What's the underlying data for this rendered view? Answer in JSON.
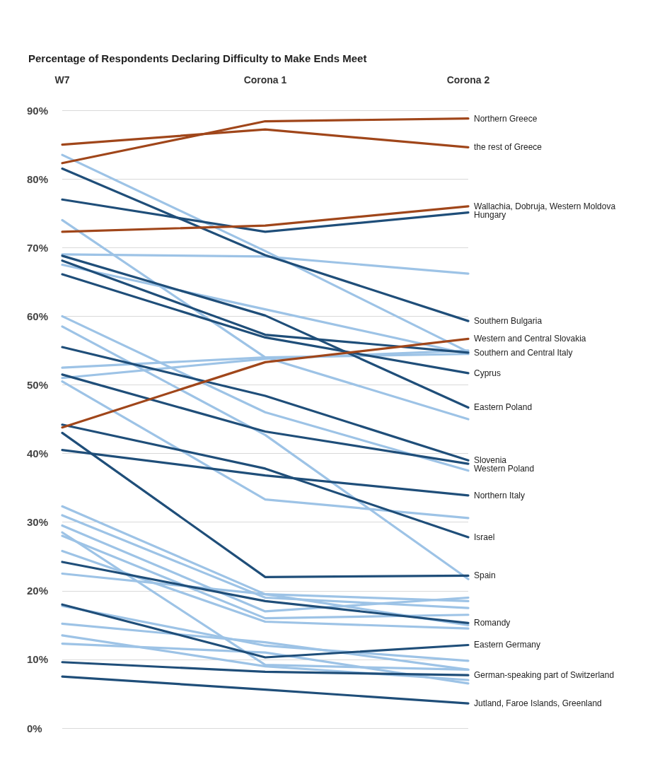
{
  "chart_data": {
    "type": "line",
    "title": "Percentage of Respondents Declaring Difficulty to Make Ends Meet",
    "categories": [
      "W7",
      "Corona 1",
      "Corona 2"
    ],
    "ylim": [
      0,
      90
    ],
    "yticks": [
      {
        "value": 0,
        "label": "0%"
      },
      {
        "value": 10,
        "label": "10%"
      },
      {
        "value": 20,
        "label": "20%"
      },
      {
        "value": 30,
        "label": "30%"
      },
      {
        "value": 40,
        "label": "40%"
      },
      {
        "value": 50,
        "label": "50%"
      },
      {
        "value": 60,
        "label": "60%"
      },
      {
        "value": 70,
        "label": "70%"
      },
      {
        "value": 80,
        "label": "80%"
      },
      {
        "value": 90,
        "label": "90%"
      }
    ],
    "grid": "y",
    "legend": false,
    "marker": "none",
    "line_style": "solid",
    "series": [
      {
        "color": "#9dc3e6",
        "values": [
          83.5,
          69.5,
          54.8
        ]
      },
      {
        "color": "#9dc3e6",
        "values": [
          74.0,
          54.0,
          45.0
        ]
      },
      {
        "color": "#9dc3e6",
        "values": [
          69.0,
          68.7,
          66.2
        ]
      },
      {
        "color": "#9dc3e6",
        "values": [
          67.5,
          61.0,
          54.5
        ]
      },
      {
        "color": "#9dc3e6",
        "values": [
          60.0,
          46.0,
          37.5
        ]
      },
      {
        "color": "#9dc3e6",
        "values": [
          58.5,
          42.7,
          21.7
        ]
      },
      {
        "color": "#9dc3e6",
        "values": [
          52.5,
          54.0,
          54.5
        ]
      },
      {
        "color": "#9dc3e6",
        "values": [
          51.0,
          53.8,
          55.0
        ]
      },
      {
        "color": "#9dc3e6",
        "values": [
          50.5,
          33.3,
          30.6
        ]
      },
      {
        "color": "#9dc3e6",
        "values": [
          32.3,
          19.5,
          18.5
        ]
      },
      {
        "color": "#9dc3e6",
        "values": [
          31.0,
          19.0,
          17.5
        ]
      },
      {
        "color": "#9dc3e6",
        "values": [
          29.5,
          17.0,
          19.0
        ]
      },
      {
        "color": "#9dc3e6",
        "values": [
          28.5,
          9.2,
          8.5
        ]
      },
      {
        "color": "#9dc3e6",
        "values": [
          28.0,
          16.0,
          16.5
        ]
      },
      {
        "color": "#9dc3e6",
        "values": [
          25.8,
          15.5,
          14.5
        ]
      },
      {
        "color": "#9dc3e6",
        "values": [
          22.5,
          19.5,
          15.0
        ]
      },
      {
        "color": "#9dc3e6",
        "values": [
          17.8,
          12.0,
          9.8
        ]
      },
      {
        "color": "#9dc3e6",
        "values": [
          15.2,
          12.5,
          8.5
        ]
      },
      {
        "color": "#9dc3e6",
        "values": [
          13.5,
          9.0,
          7.0
        ]
      },
      {
        "color": "#9dc3e6",
        "values": [
          12.3,
          11.0,
          6.5
        ]
      },
      {
        "name": "Hungary",
        "color": "#1f4e79",
        "values": [
          77.0,
          72.3,
          75.1
        ]
      },
      {
        "name": "Southern Bulgaria",
        "color": "#1f4e79",
        "values": [
          81.5,
          68.9,
          59.3
        ]
      },
      {
        "name": "Southern and Central Italy",
        "color": "#1f4e79",
        "values": [
          68.1,
          57.3,
          54.7
        ]
      },
      {
        "name": "Cyprus",
        "color": "#1f4e79",
        "values": [
          66.1,
          56.9,
          51.7
        ]
      },
      {
        "name": "Eastern Poland",
        "color": "#1f4e79",
        "values": [
          68.8,
          60.1,
          46.7
        ]
      },
      {
        "name": "Slovenia",
        "color": "#1f4e79",
        "values": [
          55.5,
          48.4,
          39.0
        ]
      },
      {
        "name": "Western Poland",
        "color": "#1f4e79",
        "values": [
          51.5,
          43.2,
          38.5
        ]
      },
      {
        "name": "Northern Italy",
        "color": "#1f4e79",
        "values": [
          40.5,
          36.8,
          33.9
        ]
      },
      {
        "name": "Israel",
        "color": "#1f4e79",
        "values": [
          44.2,
          37.8,
          27.8
        ]
      },
      {
        "name": "Spain",
        "color": "#1f4e79",
        "values": [
          43.0,
          22.0,
          22.2
        ]
      },
      {
        "name": "Romandy",
        "color": "#1f4e79",
        "values": [
          24.2,
          18.5,
          15.3
        ]
      },
      {
        "name": "Eastern Germany",
        "color": "#1f4e79",
        "values": [
          18.0,
          10.3,
          12.1
        ]
      },
      {
        "name": "German-speaking part of Switzerland",
        "color": "#1f4e79",
        "values": [
          9.6,
          8.2,
          7.7
        ]
      },
      {
        "name": "Jutland, Faroe Islands, Greenland",
        "color": "#1f4e79",
        "values": [
          7.5,
          5.6,
          3.6
        ]
      },
      {
        "name": "Northern Greece",
        "color": "#a0461a",
        "values": [
          82.3,
          88.4,
          88.8
        ]
      },
      {
        "name": "the rest of Greece",
        "color": "#a0461a",
        "values": [
          85.0,
          87.2,
          84.6
        ]
      },
      {
        "name": "Wallachia, Dobruja, Western Moldova",
        "color": "#a0461a",
        "values": [
          72.3,
          73.2,
          76.0
        ]
      },
      {
        "name": "Western and Central Slovakia",
        "color": "#a0461a",
        "values": [
          43.8,
          53.3,
          56.7
        ]
      }
    ]
  }
}
